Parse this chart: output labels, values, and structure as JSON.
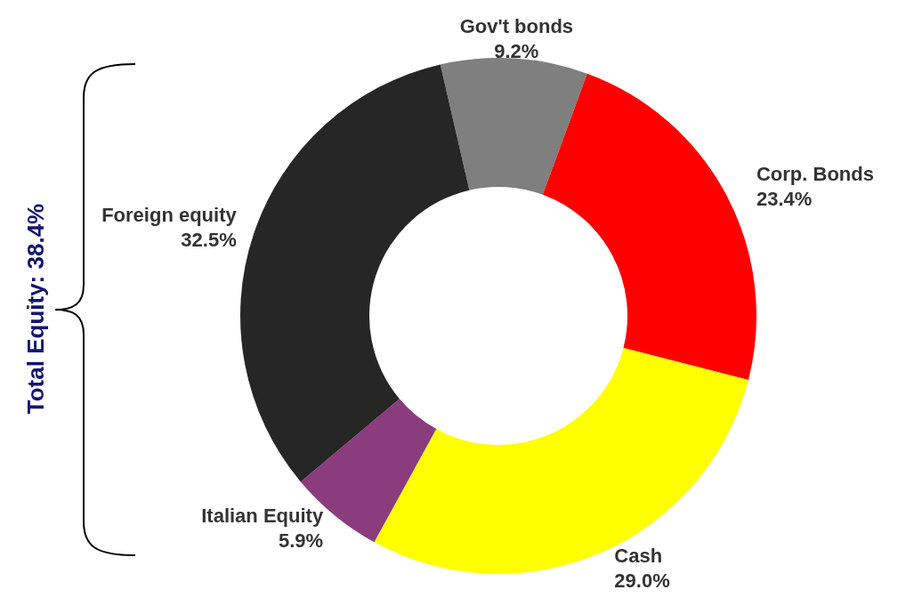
{
  "chart_data": {
    "type": "donut",
    "categories": [
      "Gov't bonds",
      "Corp. Bonds",
      "Cash",
      "Italian Equity",
      "Foreign equity"
    ],
    "values": [
      9.2,
      23.4,
      29.0,
      5.9,
      32.5
    ],
    "colors": [
      "#7f7f7f",
      "#ff0000",
      "#ffff00",
      "#8b3c7c",
      "#262626"
    ],
    "value_labels": [
      "9.2%",
      "23.4%",
      "29.0%",
      "5.9%",
      "32.5%"
    ],
    "annotations": [
      "Total Equity: 38.4%"
    ],
    "legend": false
  }
}
